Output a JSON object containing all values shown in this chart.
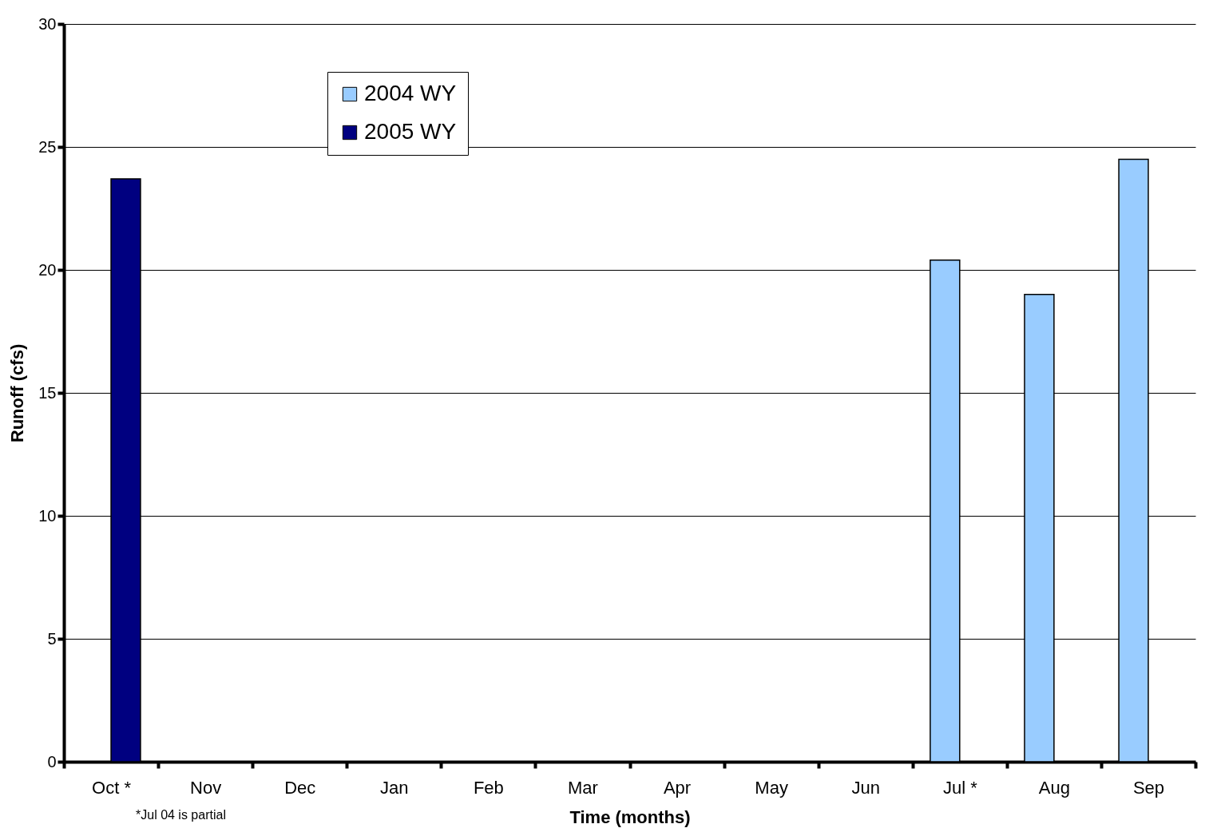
{
  "chart_data": {
    "type": "bar",
    "xlabel": "Time (months)",
    "ylabel": "Runoff (cfs)",
    "categories": [
      "Oct *",
      "Nov",
      "Dec",
      "Jan",
      "Feb",
      "Mar",
      "Apr",
      "May",
      "Jun",
      "Jul *",
      "Aug",
      "Sep"
    ],
    "series": [
      {
        "name": "2004 WY",
        "color": "#99ccff",
        "values": [
          null,
          null,
          null,
          null,
          null,
          null,
          null,
          null,
          null,
          20.4,
          19.0,
          24.5
        ]
      },
      {
        "name": "2005 WY",
        "color": "#000080",
        "values": [
          23.7,
          null,
          null,
          null,
          null,
          null,
          null,
          null,
          null,
          null,
          null,
          null
        ]
      }
    ],
    "ylim": [
      0,
      30
    ],
    "yticks": [
      0,
      5,
      10,
      15,
      20,
      25,
      30
    ],
    "grid": "y",
    "legend": "top left",
    "annotations": [
      "*Jul 04 is partial"
    ]
  }
}
